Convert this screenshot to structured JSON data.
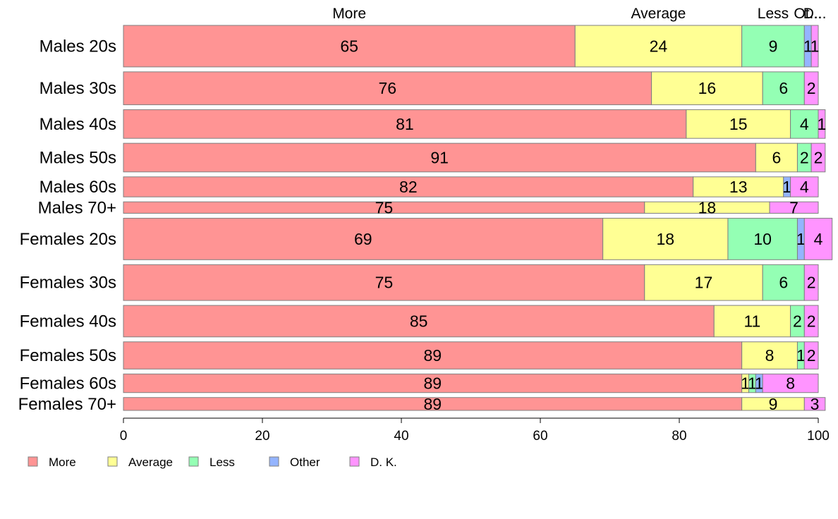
{
  "chart_data": {
    "type": "bar",
    "orientation": "horizontal",
    "stacked": true,
    "mosaic": true,
    "categories": [
      "Males 20s",
      "Males 30s",
      "Males 40s",
      "Males 50s",
      "Males 60s",
      "Males 70+",
      "Females 20s",
      "Females 30s",
      "Females 40s",
      "Females 50s",
      "Females 60s",
      "Females 70+"
    ],
    "top_labels": [
      "More",
      "Average",
      "Less",
      "Ot...",
      "D..."
    ],
    "series": [
      {
        "name": "More",
        "color": "#ff9494",
        "values": [
          65,
          76,
          81,
          91,
          82,
          75,
          69,
          75,
          85,
          89,
          89,
          89
        ]
      },
      {
        "name": "Average",
        "color": "#ffff94",
        "values": [
          24,
          16,
          15,
          6,
          13,
          18,
          18,
          17,
          11,
          8,
          1,
          9
        ]
      },
      {
        "name": "Less",
        "color": "#94ffb4",
        "values": [
          9,
          6,
          4,
          2,
          0,
          0,
          10,
          6,
          2,
          1,
          1,
          0
        ]
      },
      {
        "name": "Other",
        "color": "#94b4ff",
        "values": [
          1,
          0,
          0,
          0,
          1,
          0,
          1,
          0,
          0,
          0,
          1,
          0
        ]
      },
      {
        "name": "D. K.",
        "color": "#ff94ff",
        "values": [
          1,
          2,
          1,
          2,
          4,
          7,
          4,
          2,
          2,
          2,
          8,
          3
        ]
      }
    ],
    "segment_labels": [
      [
        "65",
        "24",
        "9",
        "1",
        "1"
      ],
      [
        "76",
        "16",
        "6",
        "",
        "2"
      ],
      [
        "81",
        "15",
        "4",
        "",
        "1"
      ],
      [
        "91",
        "6",
        "2",
        "",
        "2"
      ],
      [
        "82",
        "13",
        "",
        "1",
        "4"
      ],
      [
        "75",
        "18",
        "",
        "",
        "7"
      ],
      [
        "69",
        "18",
        "10",
        "1",
        "4"
      ],
      [
        "75",
        "17",
        "6",
        "",
        "2"
      ],
      [
        "85",
        "11",
        "2",
        "",
        "2"
      ],
      [
        "89",
        "8",
        "1",
        "",
        "2"
      ],
      [
        "89",
        "1",
        "1",
        "1",
        "8"
      ],
      [
        "89",
        "9",
        "",
        "",
        "3"
      ]
    ],
    "bar_heights": [
      58,
      46,
      40,
      40,
      28,
      16,
      58,
      50,
      44,
      38,
      26,
      18
    ],
    "xlim": [
      0,
      100
    ],
    "xticks": [
      0,
      20,
      40,
      60,
      80,
      100
    ],
    "legend": {
      "position": "bottom-left",
      "entries": [
        "More",
        "Average",
        "Less",
        "Other",
        "D. K."
      ]
    },
    "xlabel": "",
    "ylabel": ""
  }
}
